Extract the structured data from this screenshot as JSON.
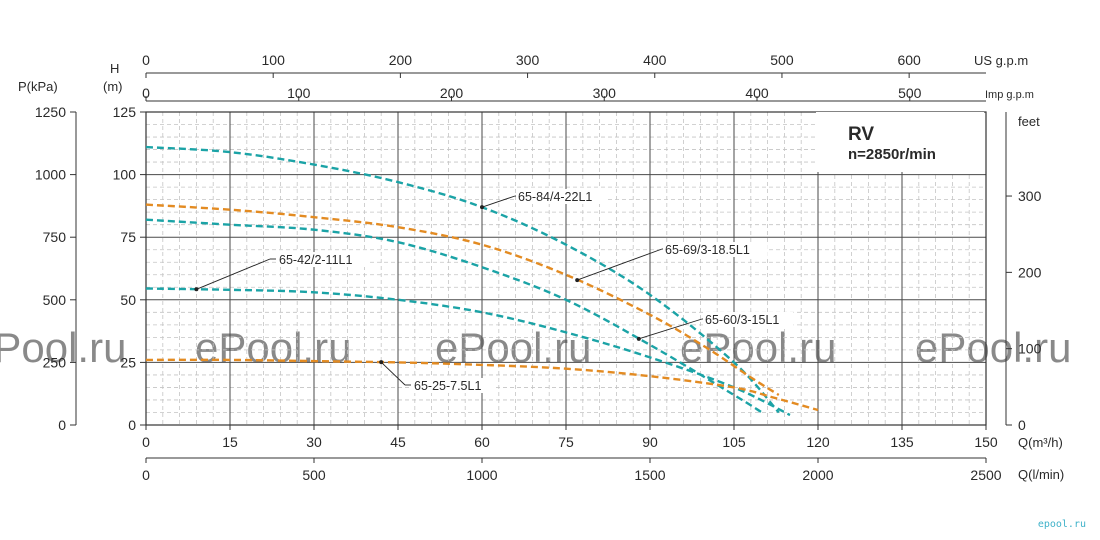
{
  "chart_data": {
    "type": "line",
    "title": "RV",
    "subtitle": "n=2850r/min",
    "xlabel": "Q(m³/h)",
    "xlim": [
      0,
      150
    ],
    "ylabel_left_outer": "P(kPa)",
    "ylabel_left_inner_1": "H",
    "ylabel_left_inner_2": "(m)",
    "ylabel_right": "feet",
    "ylim": [
      0,
      125
    ],
    "grid": true,
    "x_ticks": [
      0,
      15,
      30,
      45,
      60,
      75,
      90,
      105,
      120,
      135,
      150
    ],
    "y_ticks_m": [
      0,
      25,
      50,
      75,
      100,
      125
    ],
    "y_ticks_kpa": [
      0,
      250,
      500,
      750,
      1000,
      1250
    ],
    "y_ticks_feet": [
      0,
      100,
      200,
      300
    ],
    "lpm_axis": {
      "label": "Q(l/min)",
      "ticks": [
        0,
        500,
        1000,
        1500,
        2000,
        2500
      ]
    },
    "usgpm_axis": {
      "label": "US g.p.m",
      "ticks": [
        0,
        100,
        200,
        300,
        400,
        500,
        600
      ]
    },
    "impgpm_axis": {
      "label": "Imp g.p.m",
      "ticks": [
        0,
        100,
        200,
        300,
        400,
        500
      ]
    },
    "series": [
      {
        "name": "65-84/4-22L1",
        "color": "#1ba3a6",
        "points": [
          [
            0,
            111
          ],
          [
            15,
            109
          ],
          [
            30,
            104
          ],
          [
            45,
            97
          ],
          [
            60,
            87
          ],
          [
            75,
            72
          ],
          [
            90,
            52
          ],
          [
            105,
            25
          ],
          [
            113,
            5
          ]
        ]
      },
      {
        "name": "65-69/3-18.5L1",
        "color": "#e38b22",
        "points": [
          [
            0,
            88
          ],
          [
            15,
            86
          ],
          [
            30,
            83
          ],
          [
            45,
            79
          ],
          [
            60,
            72
          ],
          [
            75,
            60
          ],
          [
            90,
            44
          ],
          [
            100,
            31
          ],
          [
            108,
            19
          ],
          [
            113,
            12
          ]
        ]
      },
      {
        "name": "65-60/3-15L1",
        "color": "#1ba3a6",
        "points": [
          [
            0,
            82
          ],
          [
            15,
            80
          ],
          [
            30,
            78
          ],
          [
            45,
            73
          ],
          [
            60,
            63
          ],
          [
            75,
            50
          ],
          [
            90,
            32
          ],
          [
            105,
            12
          ],
          [
            110,
            5
          ]
        ]
      },
      {
        "name": "65-42/2-11L1",
        "color": "#1ba3a6",
        "points": [
          [
            0,
            54.5
          ],
          [
            15,
            54
          ],
          [
            30,
            53
          ],
          [
            45,
            50
          ],
          [
            60,
            45
          ],
          [
            75,
            37
          ],
          [
            90,
            27
          ],
          [
            105,
            15
          ],
          [
            115,
            4
          ]
        ]
      },
      {
        "name": "65-25-7.5L1",
        "color": "#e38b22",
        "points": [
          [
            0,
            26
          ],
          [
            15,
            26
          ],
          [
            30,
            25.5
          ],
          [
            45,
            25
          ],
          [
            60,
            24
          ],
          [
            75,
            22.5
          ],
          [
            90,
            19.5
          ],
          [
            105,
            15
          ],
          [
            112,
            11
          ],
          [
            120,
            6
          ]
        ]
      }
    ]
  },
  "watermarks": [
    "ePool.ru",
    "ePool.ru",
    "ePool.ru",
    "ePool.ru",
    "ePool.ru"
  ],
  "brand": "epool.ru"
}
